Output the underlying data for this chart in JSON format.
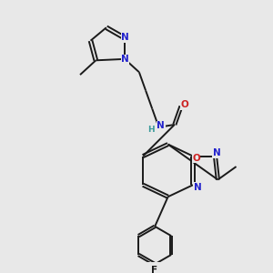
{
  "bg_color": "#e8e8e8",
  "bond_color": "#1a1a1a",
  "N_color": "#2222cc",
  "O_color": "#cc2222",
  "F_color": "#1a1a1a",
  "H_color": "#3a9a9a",
  "figsize": [
    3.0,
    3.0
  ],
  "dpi": 100,
  "lw": 1.4,
  "fs": 7.5,
  "xlim": [
    0,
    10
  ],
  "ylim": [
    0,
    10
  ]
}
